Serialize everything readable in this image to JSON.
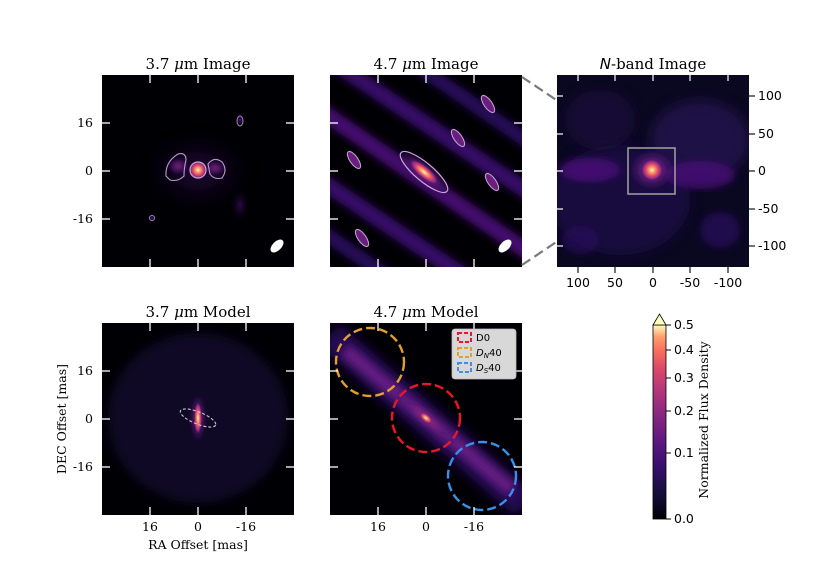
{
  "panels": {
    "img37": {
      "title_pre": "3.7 ",
      "title_mu": "μ",
      "title_post": "m Image"
    },
    "img47": {
      "title_pre": "4.7 ",
      "title_mu": "μ",
      "title_post": "m Image"
    },
    "nband": {
      "title_it": "N",
      "title_post": "-band Image"
    },
    "mod37": {
      "title_pre": "3.7 ",
      "title_mu": "μ",
      "title_post": "m Model"
    },
    "mod47": {
      "title_pre": "4.7 ",
      "title_mu": "μ",
      "title_post": "m Model"
    }
  },
  "axes": {
    "ylabel": "DEC Offset [mas]",
    "xlabel": "RA Offset [mas]",
    "ticks_mas": [
      "16",
      "0",
      "-16"
    ],
    "nband_y_ticks": [
      "100",
      "50",
      "0",
      "-50",
      "-100"
    ],
    "nband_x_ticks": [
      "100",
      "50",
      "0",
      "-50",
      "-100"
    ]
  },
  "legend": {
    "entries": [
      {
        "label": "D0",
        "color": "#e8182a"
      },
      {
        "label_pre": "D",
        "label_sub": "N",
        "label_post": "40",
        "color": "#e0a030"
      },
      {
        "label_pre": "D",
        "label_sub": "S",
        "label_post": "40",
        "color": "#3a8fe8"
      }
    ]
  },
  "colorbar": {
    "label": "Normalized Flux Density",
    "ticks": [
      "0.5",
      "0.4",
      "0.3",
      "0.2",
      "0.1",
      "0.0"
    ],
    "colormap": "magma"
  }
}
